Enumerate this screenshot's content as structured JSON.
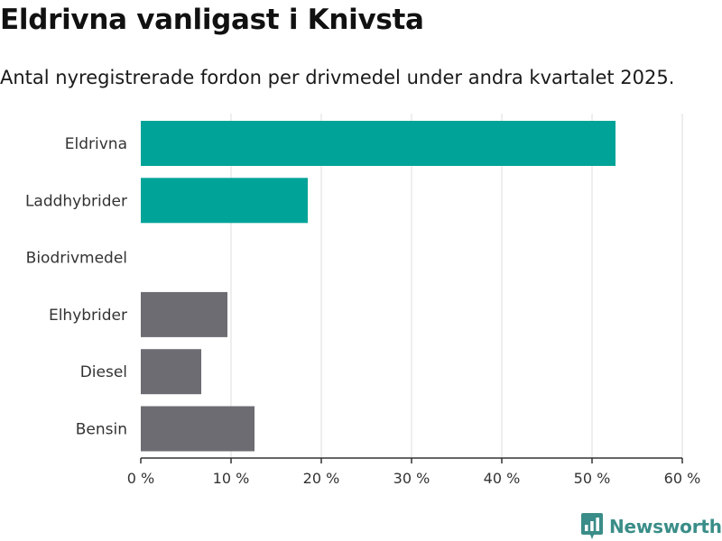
{
  "chart_data": {
    "type": "bar",
    "orientation": "horizontal",
    "title": "Eldrivna vanligast i Knivsta",
    "subtitle": "Antal nyregistrerade fordon per drivmedel under andra kvartalet 2025.",
    "categories": [
      "Eldrivna",
      "Laddhybrider",
      "Biodrivmedel",
      "Elhybrider",
      "Diesel",
      "Bensin"
    ],
    "values": [
      52.6,
      18.5,
      0,
      9.6,
      6.7,
      12.6
    ],
    "bar_colors": [
      "#00a398",
      "#00a398",
      "#6d6c72",
      "#6d6c72",
      "#6d6c72",
      "#6d6c72"
    ],
    "xlim": [
      0,
      60
    ],
    "x_ticks": [
      0,
      10,
      20,
      30,
      40,
      50,
      60
    ],
    "x_tick_labels": [
      "0 %",
      "10 %",
      "20 %",
      "30 %",
      "40 %",
      "50 %",
      "60 %"
    ],
    "xlabel": "",
    "ylabel": "",
    "grid": true,
    "legend": "none"
  },
  "brand": {
    "name": "Newsworthy",
    "color": "#3a8d88",
    "icon": "bar-chart-bubble-icon"
  }
}
